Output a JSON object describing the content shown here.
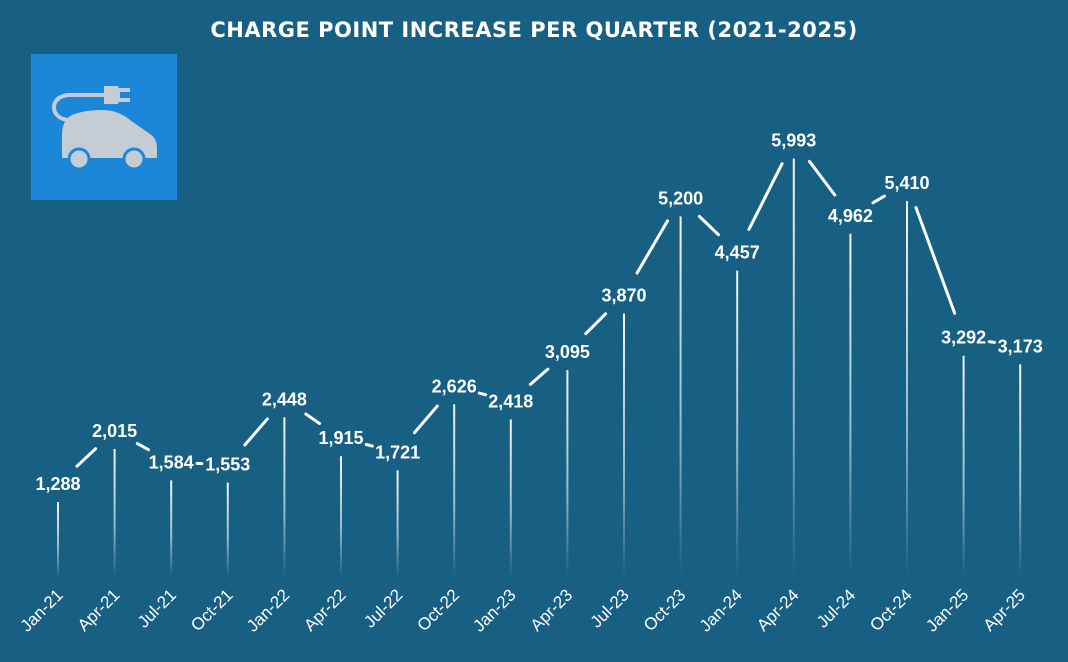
{
  "chart_data": {
    "type": "line",
    "title": "CHARGE POINT INCREASE PER QUARTER (2021-2025)",
    "categories": [
      "Jan-21",
      "Apr-21",
      "Jul-21",
      "Oct-21",
      "Jan-22",
      "Apr-22",
      "Jul-22",
      "Oct-22",
      "Jan-23",
      "Apr-23",
      "Jul-23",
      "Oct-23",
      "Jan-24",
      "Apr-24",
      "Jul-24",
      "Oct-24",
      "Jan-25",
      "Apr-25"
    ],
    "values": [
      1288,
      2015,
      1584,
      1553,
      2448,
      1915,
      1721,
      2626,
      2418,
      3095,
      3870,
      5200,
      4457,
      5993,
      4962,
      5410,
      3292,
      3173
    ],
    "data_labels": [
      "1,288",
      "2,015",
      "1,584",
      "1,553",
      "2,448",
      "1,915",
      "1,721",
      "2,626",
      "2,418",
      "3,095",
      "3,870",
      "5,200",
      "4,457",
      "5,993",
      "4,962",
      "5,410",
      "3,292",
      "3,173"
    ],
    "xlabel": "",
    "ylabel": "",
    "ylim": [
      0,
      6500
    ],
    "grid": false,
    "legend": "none",
    "colors": {
      "background": "#175f83",
      "line": "#ffffff",
      "icon_tile": "#1c86d9",
      "icon_fill": "#c5ccd4"
    },
    "icon": "ev-charging-car-icon"
  }
}
